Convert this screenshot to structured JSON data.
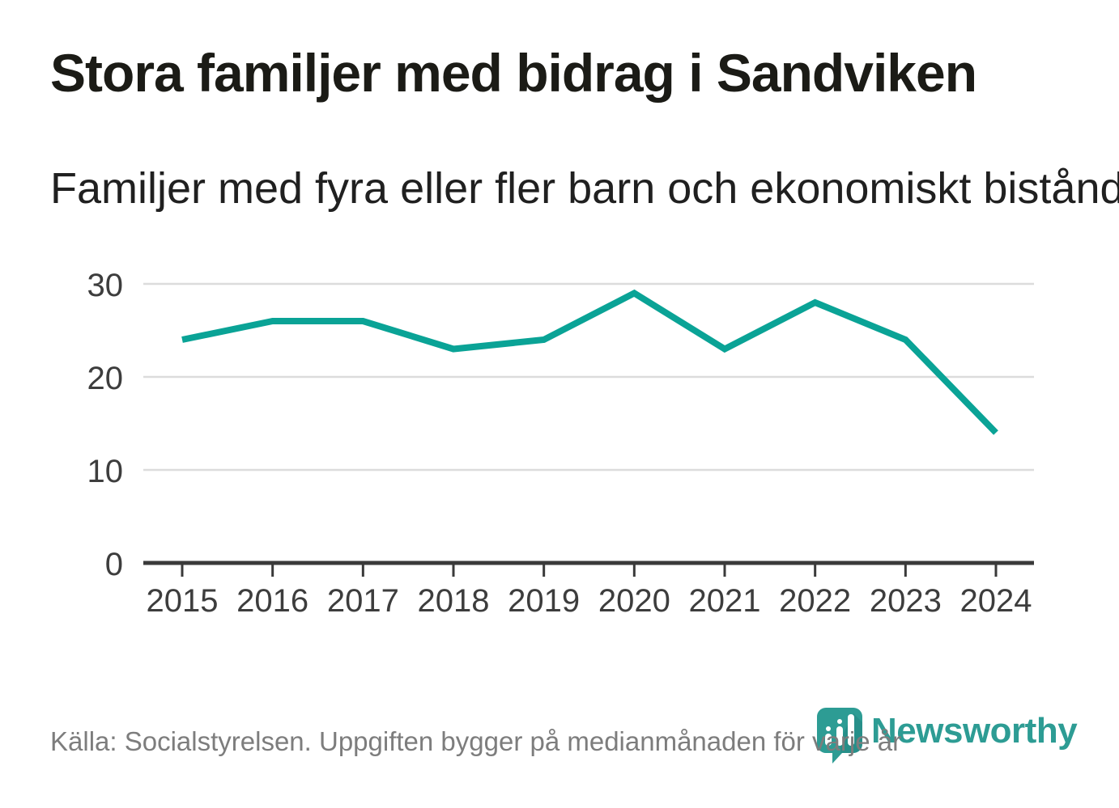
{
  "chart_data": {
    "type": "line",
    "title": "Stora familjer med bidrag i Sandviken",
    "subtitle": "Familjer med fyra eller fler barn och ekonomiskt bistånd",
    "x": [
      "2015",
      "2016",
      "2017",
      "2018",
      "2019",
      "2020",
      "2021",
      "2022",
      "2023",
      "2024"
    ],
    "series": [
      {
        "name": "Familjer med fyra eller fler barn och ekonomiskt bistånd",
        "values": [
          24,
          26,
          26,
          23,
          24,
          29,
          23,
          28,
          24,
          14
        ],
        "color": "#0aa396"
      }
    ],
    "xlabel": "",
    "ylabel": "",
    "ylim": [
      0,
      30
    ],
    "yticks": [
      0,
      10,
      20,
      30
    ],
    "grid": "horizontal-only",
    "legend": "none"
  },
  "footer": {
    "source": "Källa: Socialstyrelsen. Uppgiften bygger på medianmånaden för varje år"
  },
  "logo": {
    "text": "Newsworthy",
    "icon": "newsworthy-bubble-barchart-icon"
  },
  "colors": {
    "accent_line": "#0aa396",
    "logo_teal": "#2d9c94",
    "title_text": "#1b1b16",
    "tick_text": "#3d3d3d",
    "grid": "#dcdcdc",
    "axis": "#3a3a3a",
    "footer_text": "#7d7d7d",
    "background": "#ffffff"
  }
}
